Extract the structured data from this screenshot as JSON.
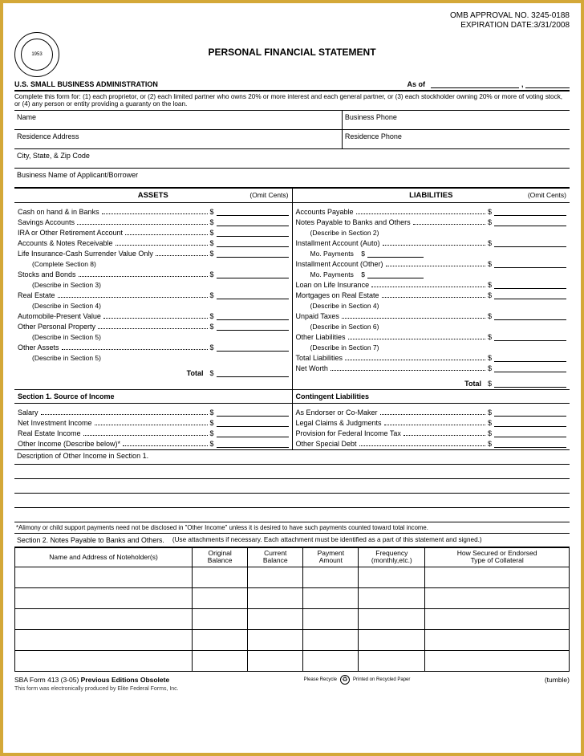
{
  "header": {
    "omb": "OMB APPROVAL NO. 3245-0188",
    "expiration": "EXPIRATION DATE:3/31/2008",
    "title": "PERSONAL FINANCIAL STATEMENT",
    "admin": "U.S. SMALL BUSINESS ADMINISTRATION",
    "asof_label": "As of",
    "seal_outer": "SMALL BUSINESS ADMINISTRATION",
    "seal_year": "1953"
  },
  "instructions": "Complete this form for: (1) each proprietor, or (2) each limited partner who owns 20% or more interest and each general partner, or (3) each stockholder owning 20% or more of voting stock, or (4) any person or entity providing a guaranty on the loan.",
  "fields": {
    "name": "Name",
    "business_phone": "Business Phone",
    "residence_address": "Residence Address",
    "residence_phone": "Residence Phone",
    "city_state_zip": "City, State, & Zip Code",
    "business_name": "Business Name of Applicant/Borrower"
  },
  "columns": {
    "assets_header": "ASSETS",
    "liabilities_header": "LIABILITIES",
    "omit": "(Omit Cents)"
  },
  "assets": [
    {
      "label": "Cash on hand & in Banks"
    },
    {
      "label": "Savings Accounts"
    },
    {
      "label": "IRA or Other Retirement Account"
    },
    {
      "label": "Accounts & Notes Receivable"
    },
    {
      "label": "Life Insurance-Cash Surrender Value Only",
      "sub": "(Complete Section 8)"
    },
    {
      "label": "Stocks and Bonds",
      "sub": "(Describe in Section 3)"
    },
    {
      "label": "Real Estate",
      "sub": "(Describe in Section 4)"
    },
    {
      "label": "Automobile-Present Value"
    },
    {
      "label": "Other Personal Property",
      "sub": "(Describe in Section 5)"
    },
    {
      "label": "Other Assets",
      "sub": "(Describe in Section 5)"
    }
  ],
  "assets_total": "Total",
  "liabilities": [
    {
      "label": "Accounts Payable"
    },
    {
      "label": "Notes Payable to Banks and Others",
      "sub": "(Describe in Section 2)"
    },
    {
      "label": "Installment Account (Auto)",
      "mo": "Mo. Payments"
    },
    {
      "label": "Installment Account (Other)",
      "mo": "Mo. Payments"
    },
    {
      "label": "Loan on Life Insurance"
    },
    {
      "label": "Mortgages on Real Estate",
      "sub": "(Describe in Section 4)"
    },
    {
      "label": "Unpaid Taxes",
      "sub": "(Describe in Section 6)"
    },
    {
      "label": "Other Liabilities",
      "sub": "(Describe in Section 7)"
    },
    {
      "label": "Total Liabilities"
    },
    {
      "label": "Net Worth"
    }
  ],
  "liab_total": "Total",
  "section1": {
    "header_left": "Section 1.    Source of Income",
    "header_right": "Contingent Liabilities",
    "income": [
      {
        "label": "Salary"
      },
      {
        "label": "Net Investment Income"
      },
      {
        "label": "Real Estate Income"
      },
      {
        "label": "Other Income (Describe below)*"
      }
    ],
    "contingent": [
      {
        "label": "As Endorser or Co-Maker"
      },
      {
        "label": "Legal Claims & Judgments"
      },
      {
        "label": "Provision for Federal Income Tax"
      },
      {
        "label": "Other Special Debt"
      }
    ],
    "desc_title": "Description of Other Income in Section 1."
  },
  "alimony_note": "*Alimony or child support payments need not be disclosed in \"Other Income\" unless it is desired to have such payments counted toward total income.",
  "section2": {
    "label": "Section 2. Notes Payable to Banks and Others.",
    "hint": "(Use attachments if necessary. Each attachment must be identified as a part of this statement and signed.)",
    "columns": [
      "Name and Address of Noteholder(s)",
      "Original\nBalance",
      "Current\nBalance",
      "Payment\nAmount",
      "Frequency\n(monthly,etc.)",
      "How Secured or Endorsed\nType of Collateral"
    ],
    "col_widths": [
      "32%",
      "10%",
      "10%",
      "10%",
      "12%",
      "26%"
    ],
    "blank_rows": 5
  },
  "footer": {
    "form": "SBA Form 413 (3-05) ",
    "obsolete": "Previous Editions Obsolete",
    "tumble": "(tumble)",
    "elec": "This form was electronically produced by Elite Federal Forms, Inc.",
    "recycle_left": "Please Recycle",
    "recycle_right": "Printed on Recycled Paper"
  }
}
